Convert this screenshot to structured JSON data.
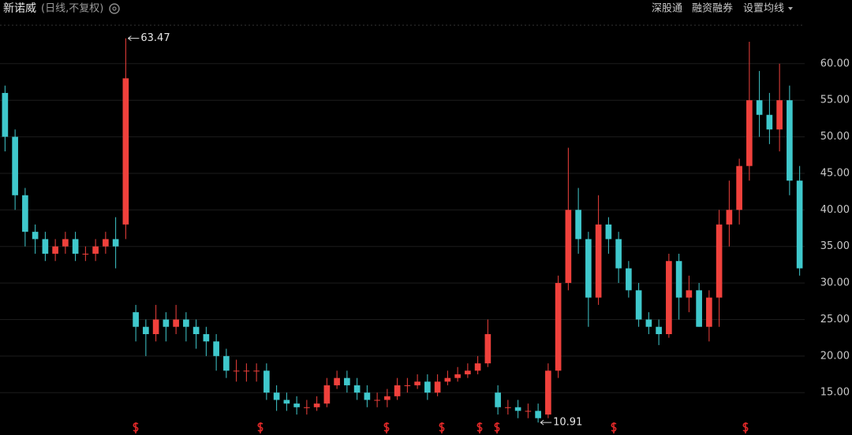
{
  "chart_data": {
    "type": "candlestick",
    "title": "新诺威",
    "subtitle": "(日线,不复权)",
    "toolbar": [
      "深股通",
      "融资融券",
      "设置均线"
    ],
    "open": [
      56,
      50,
      42,
      37,
      36,
      34,
      35,
      36,
      34,
      34,
      35,
      36,
      38,
      26,
      24,
      23,
      25,
      24,
      25,
      24,
      23,
      22,
      20,
      18,
      18,
      18,
      18,
      15,
      14,
      13.5,
      13,
      13,
      13.5,
      16,
      17,
      16,
      15,
      14,
      14,
      14.5,
      16,
      16,
      16.5,
      15,
      16.5,
      17,
      17.5,
      18,
      19,
      15,
      13,
      13,
      12.5,
      12.5,
      12,
      18,
      30,
      40,
      36,
      28,
      38,
      36,
      32,
      29,
      25,
      24,
      23,
      33,
      28,
      29,
      24,
      28,
      38,
      40,
      46,
      55,
      53,
      51,
      55,
      44
    ],
    "high": [
      57,
      51,
      43,
      38,
      37,
      36,
      37,
      37,
      35,
      36,
      37,
      39,
      63.47,
      27,
      25,
      27,
      26,
      27,
      26,
      25,
      24,
      23,
      21,
      19.5,
      19,
      19,
      19,
      16,
      15,
      14.5,
      14,
      14.5,
      17,
      18,
      18,
      17,
      16,
      15,
      15.5,
      17,
      17,
      17.5,
      17.5,
      17.5,
      18,
      18.5,
      19,
      20,
      25,
      16,
      14,
      14,
      13.5,
      13.5,
      19,
      31,
      48.5,
      43,
      37,
      42,
      39,
      37,
      33,
      30,
      26,
      25,
      34,
      34,
      31,
      30,
      29,
      40,
      44,
      47,
      63,
      59,
      56,
      60,
      57,
      46
    ],
    "low": [
      48,
      40,
      35,
      34,
      33,
      33,
      34,
      33,
      33,
      33,
      34,
      32,
      36,
      22,
      20,
      22,
      22,
      23,
      22,
      21,
      20,
      18,
      17,
      16.5,
      16.5,
      16.5,
      14,
      12.5,
      12.5,
      12,
      12,
      12.5,
      13,
      15.5,
      15,
      14,
      13,
      13,
      13,
      14,
      15,
      15.5,
      14,
      14.5,
      16,
      16.5,
      17,
      17.5,
      18.5,
      12,
      12,
      11.5,
      11.5,
      10.91,
      11.5,
      17,
      29,
      34,
      24,
      27,
      34,
      30,
      28,
      24,
      23,
      21.5,
      22.5,
      25,
      26,
      24,
      22,
      24,
      35,
      38,
      44,
      50,
      49,
      48,
      42,
      31
    ],
    "close": [
      50,
      42,
      37,
      36,
      34,
      35,
      36,
      34,
      34,
      35,
      36,
      35,
      58,
      24,
      23,
      25,
      24,
      25,
      24,
      23,
      22,
      20,
      18,
      18,
      18,
      18,
      15,
      14,
      13.5,
      13,
      13,
      13.5,
      16,
      17,
      16,
      15,
      14,
      14,
      14.5,
      16,
      16,
      16.5,
      15,
      16.5,
      17,
      17.5,
      18,
      19,
      23,
      13,
      13,
      12.5,
      12.5,
      11.5,
      18,
      30,
      40,
      36,
      28,
      38,
      36,
      32,
      29,
      25,
      24,
      23,
      33,
      28,
      29,
      24,
      28,
      38,
      40,
      46,
      55,
      53,
      51,
      55,
      44,
      32
    ],
    "high_label": "63.47",
    "low_label": "10.91",
    "up_color": "#f0413c",
    "down_color": "#3fc8cc",
    "ylim": [
      9.2,
      64.4
    ],
    "yticks": [
      {
        "value": 15,
        "label": "15.00"
      },
      {
        "value": 20,
        "label": "20.00"
      },
      {
        "value": 25,
        "label": "25.00"
      },
      {
        "value": 30,
        "label": "30.00"
      },
      {
        "value": 35,
        "label": "35.00"
      },
      {
        "value": 40,
        "label": "40.00"
      },
      {
        "value": 45,
        "label": "45.00"
      },
      {
        "value": 50,
        "label": "50.00"
      },
      {
        "value": 55,
        "label": "55.00"
      },
      {
        "value": 60,
        "label": "60.00"
      }
    ],
    "grid": true
  }
}
